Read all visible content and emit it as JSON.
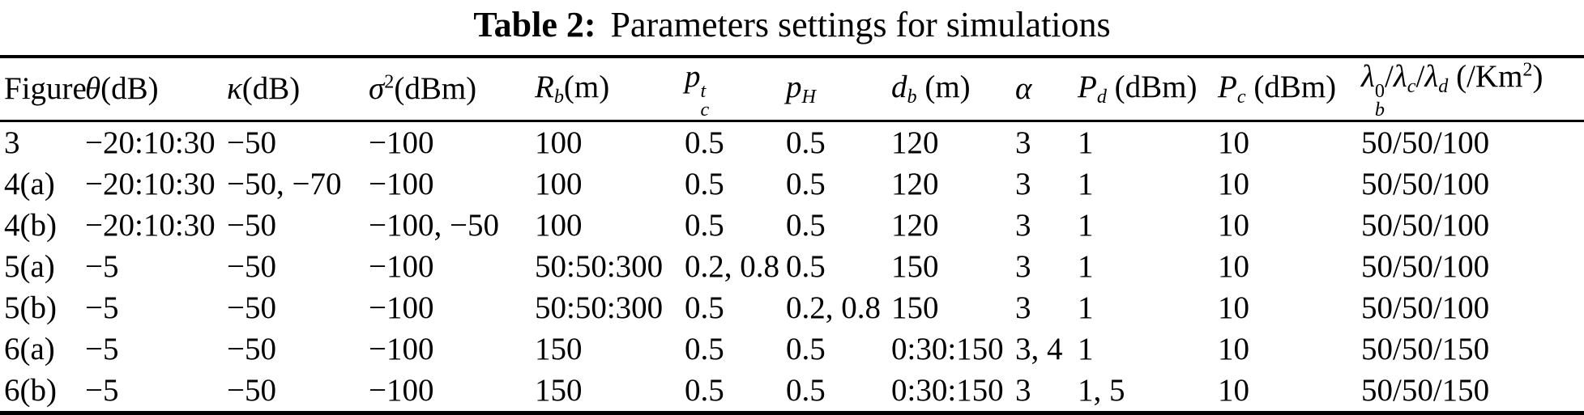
{
  "title": {
    "label": "Table 2:",
    "text": "Parameters settings for simulations"
  },
  "table": {
    "columns": [
      {
        "key": "figure",
        "label": "Figure",
        "segs": [
          {
            "t": "Figure"
          }
        ]
      },
      {
        "key": "theta",
        "label": "θ(dB)",
        "segs": [
          {
            "t": "θ",
            "i": true
          },
          {
            "t": "(dB)"
          }
        ]
      },
      {
        "key": "kappa",
        "label": "κ(dB)",
        "segs": [
          {
            "t": "κ",
            "i": true
          },
          {
            "t": "(dB)"
          }
        ]
      },
      {
        "key": "sigma2",
        "label": "σ^2(dBm)",
        "segs": [
          {
            "t": "σ",
            "i": true
          },
          {
            "t": "2",
            "pos": "sup"
          },
          {
            "t": "(dBm)"
          }
        ]
      },
      {
        "key": "rb",
        "label": "R_b(m)",
        "segs": [
          {
            "t": "R",
            "i": true
          },
          {
            "t": "b",
            "i": true,
            "pos": "sub"
          },
          {
            "t": "(m)"
          }
        ]
      },
      {
        "key": "pct",
        "label": "p_c^t",
        "segs": [
          {
            "t": "p",
            "i": true
          },
          {
            "stack": {
              "sup": {
                "t": "t",
                "i": true
              },
              "sub": {
                "t": "c",
                "i": true
              }
            }
          }
        ]
      },
      {
        "key": "ph",
        "label": "p_H",
        "segs": [
          {
            "t": "p",
            "i": true
          },
          {
            "t": "H",
            "i": true,
            "pos": "sub"
          }
        ]
      },
      {
        "key": "db",
        "label": "d_b (m)",
        "segs": [
          {
            "t": "d",
            "i": true
          },
          {
            "t": "b",
            "i": true,
            "pos": "sub"
          },
          {
            "t": " (m)"
          }
        ]
      },
      {
        "key": "alpha",
        "label": "α",
        "segs": [
          {
            "t": "α",
            "i": true
          }
        ]
      },
      {
        "key": "pd",
        "label": "P_d (dBm)",
        "segs": [
          {
            "t": "P",
            "i": true
          },
          {
            "t": "d",
            "i": true,
            "pos": "sub"
          },
          {
            "t": " (dBm)"
          }
        ]
      },
      {
        "key": "pc",
        "label": "P_c (dBm)",
        "segs": [
          {
            "t": "P",
            "i": true
          },
          {
            "t": "c",
            "i": true,
            "pos": "sub"
          },
          {
            "t": " (dBm)"
          }
        ]
      },
      {
        "key": "lambda",
        "label": "λ_b^0/λ_c/λ_d (/Km^2)",
        "segs": [
          {
            "t": "λ",
            "i": true
          },
          {
            "stack": {
              "sup": {
                "t": "0"
              },
              "sub": {
                "t": "b",
                "i": true
              }
            }
          },
          {
            "t": "/"
          },
          {
            "t": "λ",
            "i": true
          },
          {
            "t": "c",
            "i": true,
            "pos": "sub"
          },
          {
            "t": "/"
          },
          {
            "t": "λ",
            "i": true
          },
          {
            "t": "d",
            "i": true,
            "pos": "sub"
          },
          {
            "t": " (/Km"
          },
          {
            "t": "2",
            "pos": "sup"
          },
          {
            "t": ")"
          }
        ]
      }
    ],
    "rows": [
      {
        "cells": [
          "3",
          "−20:10:30",
          "−50",
          "−100",
          "100",
          "0.5",
          "0.5",
          "120",
          "3",
          "1",
          "10",
          "50/50/100"
        ]
      },
      {
        "cells": [
          "4(a)",
          "−20:10:30",
          "−50, −70",
          "−100",
          "100",
          "0.5",
          "0.5",
          "120",
          "3",
          "1",
          "10",
          "50/50/100"
        ]
      },
      {
        "cells": [
          "4(b)",
          "−20:10:30",
          "−50",
          "−100, −50",
          "100",
          "0.5",
          "0.5",
          "120",
          "3",
          "1",
          "10",
          "50/50/100"
        ]
      },
      {
        "cells": [
          "5(a)",
          "−5",
          "−50",
          "−100",
          "50:50:300",
          "0.2, 0.8",
          "0.5",
          "150",
          "3",
          "1",
          "10",
          "50/50/100"
        ]
      },
      {
        "cells": [
          "5(b)",
          "−5",
          "−50",
          "−100",
          "50:50:300",
          "0.5",
          "0.2, 0.8",
          "150",
          "3",
          "1",
          "10",
          "50/50/100"
        ]
      },
      {
        "cells": [
          "6(a)",
          "−5",
          "−50",
          "−100",
          "150",
          "0.5",
          "0.5",
          "0:30:150",
          "3, 4",
          "1",
          "10",
          "50/50/150"
        ]
      },
      {
        "cells": [
          "6(b)",
          "−5",
          "−50",
          "−100",
          "150",
          "0.5",
          "0.5",
          "0:30:150",
          "3",
          "1, 5",
          "10",
          "50/50/150"
        ]
      }
    ]
  }
}
